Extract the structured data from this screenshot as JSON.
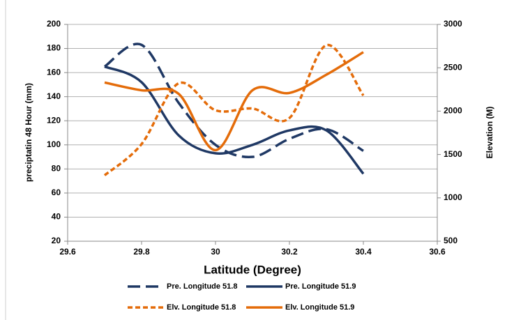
{
  "chart_data": {
    "type": "line",
    "x_label": "Latitude (Degree)",
    "y_label": "preciptatin 48 Hour (mm)",
    "y2_label": "Elevation (M)",
    "x": [
      29.7,
      29.8,
      29.9,
      30.0,
      30.1,
      30.2,
      30.3,
      30.4
    ],
    "xlim": [
      29.6,
      30.6
    ],
    "xticks": [
      29.6,
      29.8,
      30,
      30.2,
      30.4,
      30.6
    ],
    "ylim": [
      20,
      200
    ],
    "yticks": [
      20,
      40,
      60,
      80,
      100,
      120,
      140,
      160,
      180,
      200
    ],
    "y2lim": [
      500,
      3000
    ],
    "y2ticks": [
      500,
      1000,
      1500,
      2000,
      2500,
      3000
    ],
    "grid": true,
    "smooth": true,
    "series": [
      {
        "name": "Pre. Longitude 51.8",
        "color": "#1f3864",
        "dash": true,
        "values": [
          165,
          183,
          135,
          100,
          90,
          105,
          113,
          95
        ]
      },
      {
        "name": "Pre. Longitude 51.9",
        "color": "#1f3864",
        "dash": false,
        "values": [
          165,
          152,
          108,
          93,
          100,
          112,
          112,
          76
        ]
      },
      {
        "name": "Elv. Longitude 51.8",
        "color": "#e46c0a",
        "dash": true,
        "axis": "y2",
        "values": [
          1260,
          1620,
          2320,
          2010,
          2030,
          1920,
          2760,
          2180
        ]
      },
      {
        "name": "Elv. Longitude 51.9",
        "color": "#e46c0a",
        "dash": false,
        "axis": "y2",
        "values": [
          2330,
          2240,
          2200,
          1550,
          2240,
          2210,
          2420,
          2680
        ]
      }
    ]
  }
}
